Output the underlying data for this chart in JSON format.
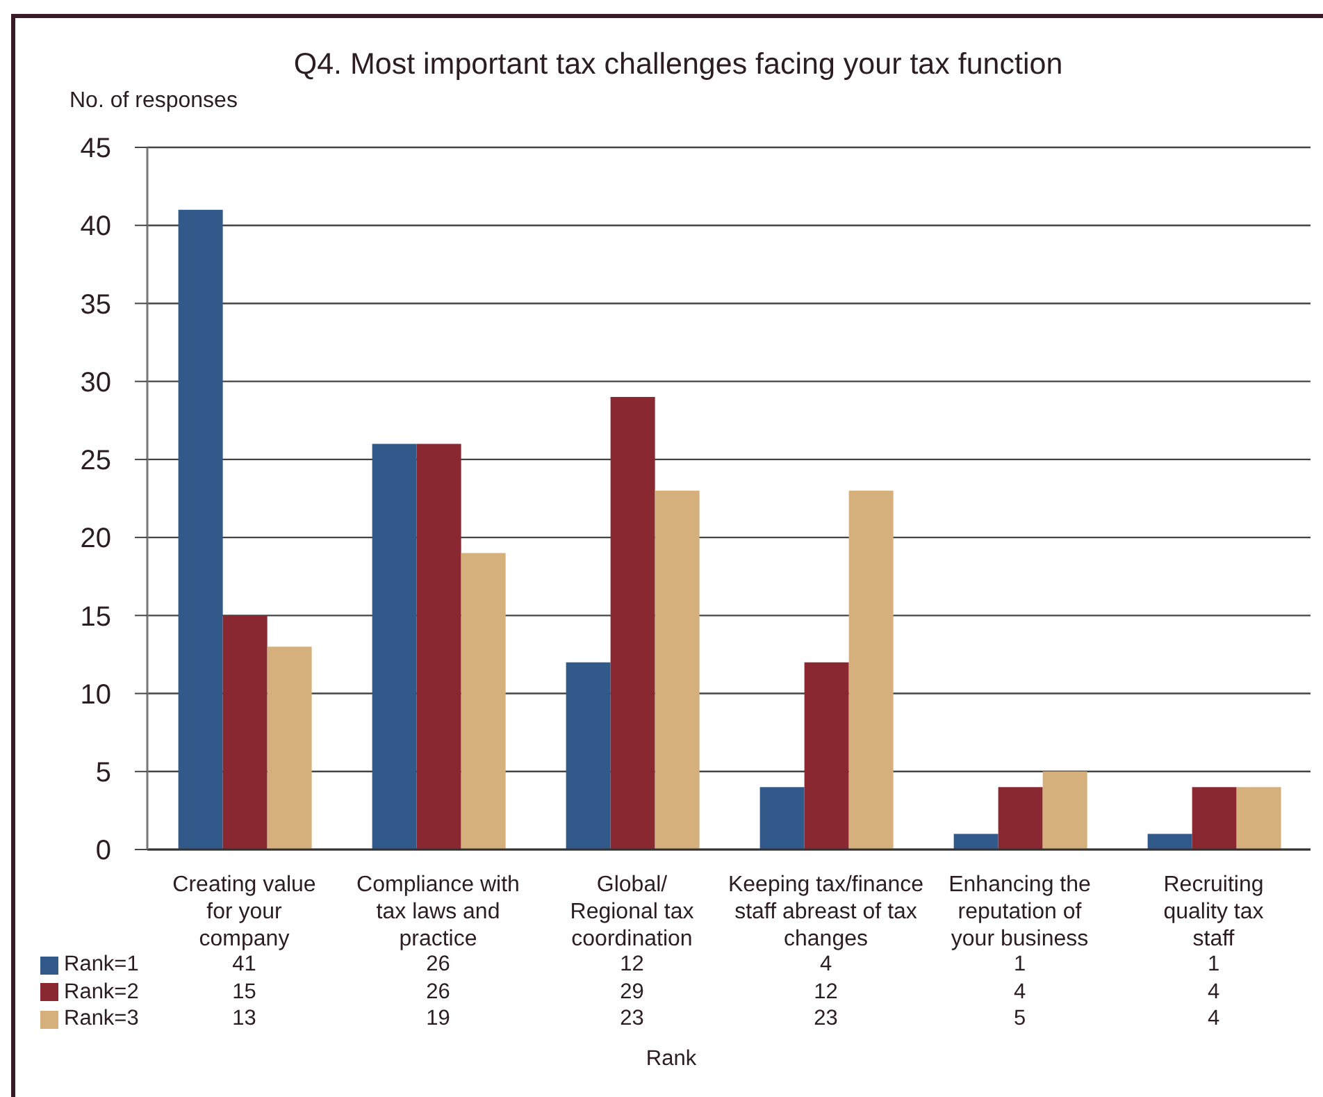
{
  "chart_data": {
    "type": "bar",
    "title": "Q4. Most important tax challenges facing your tax function",
    "ylabel": "No. of responses",
    "xlabel": "Rank",
    "categories": [
      "Creating value\nfor your\ncompany",
      "Compliance with\ntax laws and\npractice",
      "Global/\nRegional tax\ncoordination",
      "Keeping tax/finance\nstaff abreast of tax\nchanges",
      "Enhancing the\nreputation of\nyour business",
      "Recruiting\nquality tax\nstaff"
    ],
    "series": [
      {
        "name": "Rank=1",
        "color": "#31598a",
        "values": [
          41,
          26,
          12,
          4,
          1,
          1
        ]
      },
      {
        "name": "Rank=2",
        "color": "#8a2832",
        "values": [
          15,
          26,
          29,
          12,
          4,
          4
        ]
      },
      {
        "name": "Rank=3",
        "color": "#d5b07d",
        "values": [
          13,
          19,
          23,
          23,
          5,
          4
        ]
      }
    ],
    "ylim": [
      0,
      45
    ],
    "yticks": [
      0,
      5,
      10,
      15,
      20,
      25,
      30,
      35,
      40,
      45
    ],
    "grid": "y",
    "legend": "bottom left",
    "data_labels": true
  }
}
